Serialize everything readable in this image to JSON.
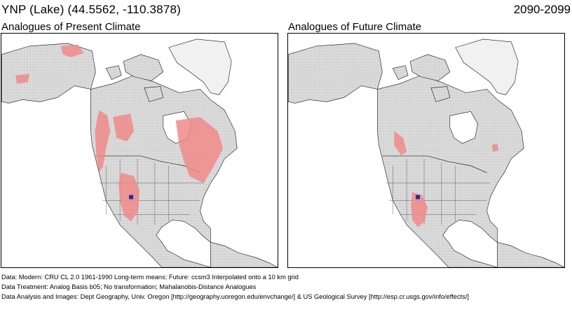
{
  "header": {
    "site_title": "YNP (Lake)  (44.5562, -110.3878)",
    "period": "2090-2099"
  },
  "panels": [
    {
      "label": "Analogues of Present Climate"
    },
    {
      "label": "Analogues of Future Climate"
    }
  ],
  "footer": {
    "lines": [
      "Data:  Modern: CRU CL 2.0 1961-1990 Long-term means; Future: ccsm3 Interpolated onto a 10 km grid",
      "Data Treatment:  Analog Basis b05; No transformation; Mahalanobis-Distance Analogues",
      "Data Analysis and Images:  Dept Geography, Univ. Oregon [http://geography.uoregon.edu/envchange/] & US Geological Survey [http://esp.cr.usgs.gov/info/effects/]"
    ]
  },
  "colors": {
    "analogue_fill": "#f08a8a",
    "land": "#dcdcdc",
    "ice": "#f2f2f2",
    "site_marker": "#1d2f9a"
  }
}
